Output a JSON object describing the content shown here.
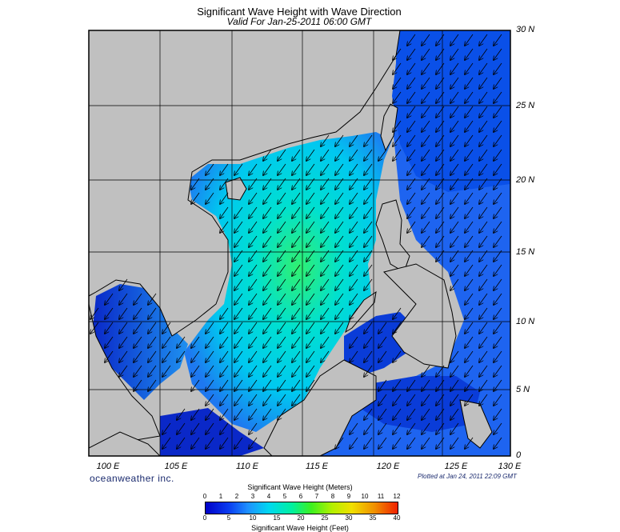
{
  "header": {
    "title": "Significant Wave Height with Wave Direction",
    "subtitle": "Valid For Jan-25-2011 06:00 GMT"
  },
  "map": {
    "lat_labels": [
      "30 N",
      "25 N",
      "20 N",
      "15 N",
      "10 N",
      "5 N",
      "0"
    ],
    "lon_labels": [
      "100 E",
      "105 E",
      "110 E",
      "115 E",
      "120 E",
      "125 E",
      "130 E"
    ],
    "lat_range": [
      0,
      30
    ],
    "lon_range": [
      100,
      130
    ],
    "land_color": "#c0c0c0",
    "wave_direction": "southwest"
  },
  "footer": {
    "brand": "oceanweather inc.",
    "plotted": "Plotted at Jan 24, 2011 22:09 GMT"
  },
  "colorbar": {
    "title_meters": "Significant Wave Height (Meters)",
    "title_feet": "Significant Wave Height (Feet)",
    "meters_ticks": [
      "0",
      "1",
      "2",
      "3",
      "4",
      "5",
      "6",
      "7",
      "8",
      "9",
      "10",
      "11",
      "12"
    ],
    "feet_ticks": [
      "0",
      "5",
      "10",
      "15",
      "20",
      "25",
      "30",
      "35",
      "40"
    ]
  }
}
